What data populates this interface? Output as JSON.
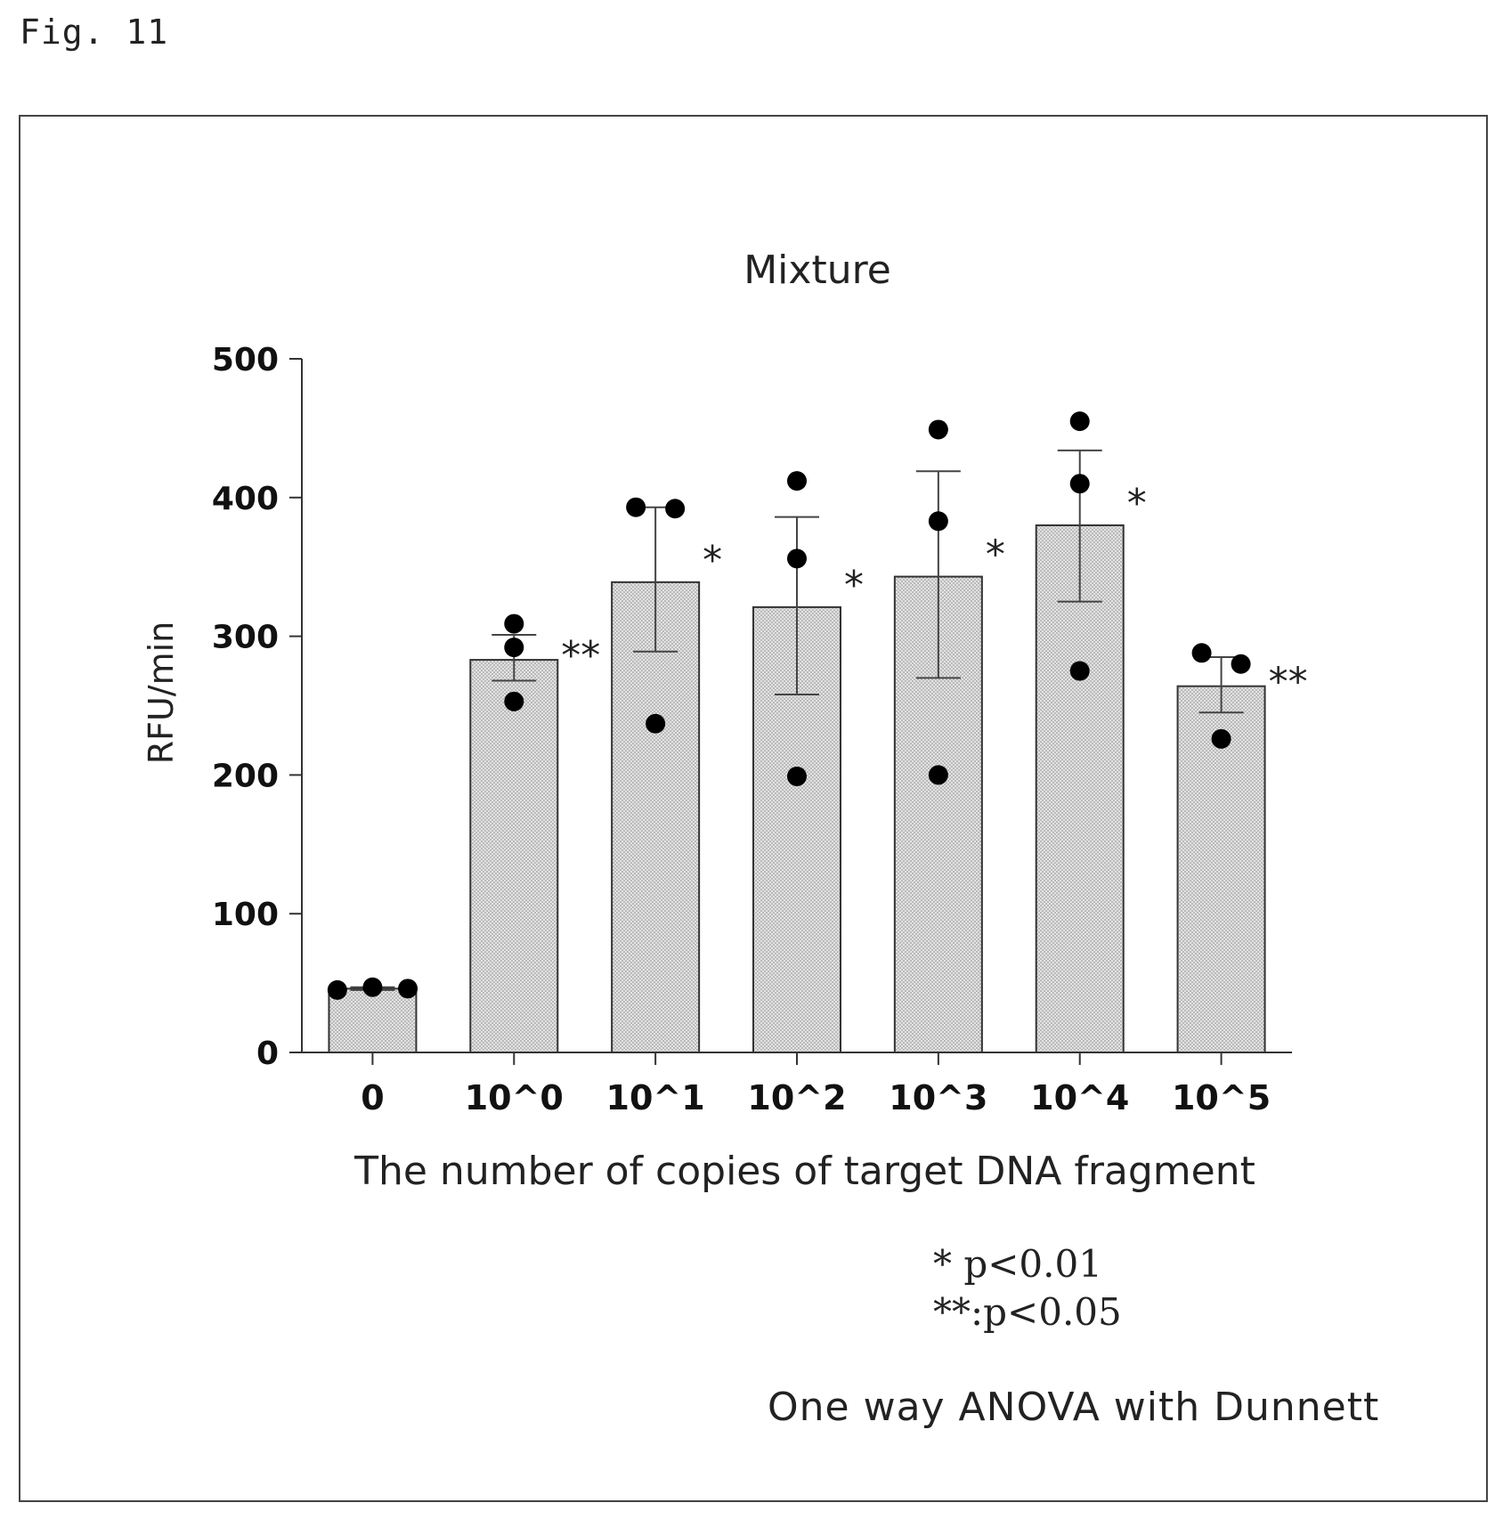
{
  "figure_label": "Fig. 11",
  "notes": [
    "* p<0.01",
    "**:p<0.05"
  ],
  "method": "One way ANOVA with Dunnett",
  "chart_data": {
    "type": "bar",
    "title": "Mixture",
    "xlabel": "The number of copies of target DNA fragment",
    "ylabel": "RFU/min",
    "ylim": [
      0,
      500
    ],
    "yticks": [
      0,
      100,
      200,
      300,
      400,
      500
    ],
    "grid": false,
    "categories": [
      "0",
      "10^0",
      "10^1",
      "10^2",
      "10^3",
      "10^4",
      "10^5"
    ],
    "values": [
      46,
      283,
      339,
      321,
      343,
      380,
      264
    ],
    "error_low": [
      45,
      268,
      289,
      258,
      270,
      325,
      245
    ],
    "error_high": [
      47,
      301,
      393,
      386,
      419,
      434,
      285
    ],
    "points": [
      [
        45,
        47,
        46
      ],
      [
        309,
        292,
        253
      ],
      [
        393,
        392,
        237
      ],
      [
        412,
        356,
        199
      ],
      [
        449,
        383,
        200
      ],
      [
        455,
        410,
        275
      ],
      [
        288,
        280,
        226
      ]
    ],
    "significance": [
      "",
      "**",
      "*",
      "*",
      "*",
      "*",
      "**"
    ],
    "colors": {
      "bar_fill": "#d9d9d9",
      "bar_stroke": "#333333",
      "point": "#000000"
    }
  }
}
